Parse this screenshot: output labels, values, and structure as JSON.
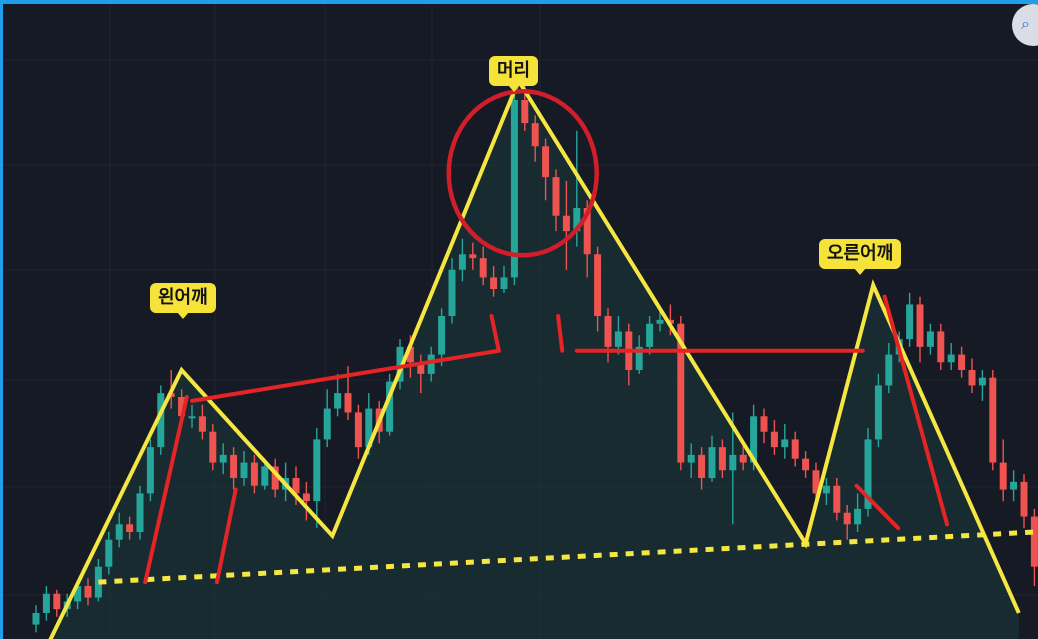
{
  "chart_data": {
    "type": "candlestick",
    "pattern": "head-and-shoulders",
    "annotations": [
      {
        "id": "left_shoulder",
        "text": "왼어깨"
      },
      {
        "id": "head",
        "text": "머리"
      },
      {
        "id": "right_shoulder",
        "text": "오른어깨"
      }
    ],
    "candles": [
      {
        "o": 90,
        "c": 93,
        "h": 95,
        "l": 88
      },
      {
        "o": 93,
        "c": 98,
        "h": 100,
        "l": 91
      },
      {
        "o": 98,
        "c": 94,
        "h": 99,
        "l": 92
      },
      {
        "o": 94,
        "c": 96,
        "h": 98,
        "l": 92
      },
      {
        "o": 96,
        "c": 100,
        "h": 101,
        "l": 94
      },
      {
        "o": 100,
        "c": 97,
        "h": 102,
        "l": 95
      },
      {
        "o": 97,
        "c": 105,
        "h": 107,
        "l": 96
      },
      {
        "o": 105,
        "c": 112,
        "h": 114,
        "l": 103
      },
      {
        "o": 112,
        "c": 116,
        "h": 119,
        "l": 110
      },
      {
        "o": 116,
        "c": 114,
        "h": 118,
        "l": 112
      },
      {
        "o": 114,
        "c": 124,
        "h": 126,
        "l": 112
      },
      {
        "o": 124,
        "c": 136,
        "h": 138,
        "l": 122
      },
      {
        "o": 136,
        "c": 150,
        "h": 152,
        "l": 134
      },
      {
        "o": 150,
        "c": 149,
        "h": 156,
        "l": 146
      },
      {
        "o": 149,
        "c": 144,
        "h": 151,
        "l": 142
      },
      {
        "o": 144,
        "c": 144,
        "h": 147,
        "l": 141
      },
      {
        "o": 144,
        "c": 140,
        "h": 147,
        "l": 138
      },
      {
        "o": 140,
        "c": 132,
        "h": 142,
        "l": 130
      },
      {
        "o": 132,
        "c": 134,
        "h": 137,
        "l": 129
      },
      {
        "o": 134,
        "c": 128,
        "h": 136,
        "l": 125
      },
      {
        "o": 128,
        "c": 132,
        "h": 135,
        "l": 126
      },
      {
        "o": 132,
        "c": 126,
        "h": 134,
        "l": 124
      },
      {
        "o": 126,
        "c": 131,
        "h": 133,
        "l": 125
      },
      {
        "o": 131,
        "c": 125,
        "h": 133,
        "l": 123
      },
      {
        "o": 125,
        "c": 128,
        "h": 132,
        "l": 122
      },
      {
        "o": 128,
        "c": 124,
        "h": 131,
        "l": 121
      },
      {
        "o": 124,
        "c": 122,
        "h": 127,
        "l": 117
      },
      {
        "o": 122,
        "c": 138,
        "h": 141,
        "l": 115
      },
      {
        "o": 138,
        "c": 146,
        "h": 151,
        "l": 136
      },
      {
        "o": 146,
        "c": 150,
        "h": 155,
        "l": 144
      },
      {
        "o": 150,
        "c": 145,
        "h": 157,
        "l": 143
      },
      {
        "o": 145,
        "c": 136,
        "h": 147,
        "l": 133
      },
      {
        "o": 136,
        "c": 146,
        "h": 150,
        "l": 134
      },
      {
        "o": 146,
        "c": 140,
        "h": 148,
        "l": 137
      },
      {
        "o": 140,
        "c": 153,
        "h": 155,
        "l": 139
      },
      {
        "o": 153,
        "c": 162,
        "h": 164,
        "l": 151
      },
      {
        "o": 162,
        "c": 158,
        "h": 165,
        "l": 154
      },
      {
        "o": 158,
        "c": 155,
        "h": 160,
        "l": 150
      },
      {
        "o": 155,
        "c": 160,
        "h": 162,
        "l": 153
      },
      {
        "o": 160,
        "c": 170,
        "h": 172,
        "l": 157
      },
      {
        "o": 170,
        "c": 182,
        "h": 185,
        "l": 168
      },
      {
        "o": 182,
        "c": 186,
        "h": 190,
        "l": 179
      },
      {
        "o": 186,
        "c": 185,
        "h": 189,
        "l": 182
      },
      {
        "o": 185,
        "c": 180,
        "h": 188,
        "l": 178
      },
      {
        "o": 180,
        "c": 177,
        "h": 183,
        "l": 175
      },
      {
        "o": 177,
        "c": 180,
        "h": 183,
        "l": 176
      },
      {
        "o": 180,
        "c": 226,
        "h": 228,
        "l": 178
      },
      {
        "o": 226,
        "c": 220,
        "h": 230,
        "l": 218
      },
      {
        "o": 220,
        "c": 214,
        "h": 222,
        "l": 210
      },
      {
        "o": 214,
        "c": 206,
        "h": 216,
        "l": 200
      },
      {
        "o": 206,
        "c": 196,
        "h": 208,
        "l": 192
      },
      {
        "o": 196,
        "c": 192,
        "h": 205,
        "l": 182
      },
      {
        "o": 192,
        "c": 198,
        "h": 218,
        "l": 188
      },
      {
        "o": 198,
        "c": 186,
        "h": 200,
        "l": 180
      },
      {
        "o": 186,
        "c": 170,
        "h": 188,
        "l": 166
      },
      {
        "o": 170,
        "c": 162,
        "h": 172,
        "l": 158
      },
      {
        "o": 162,
        "c": 166,
        "h": 170,
        "l": 160
      },
      {
        "o": 166,
        "c": 156,
        "h": 168,
        "l": 152
      },
      {
        "o": 156,
        "c": 162,
        "h": 165,
        "l": 155
      },
      {
        "o": 162,
        "c": 168,
        "h": 170,
        "l": 160
      },
      {
        "o": 168,
        "c": 169,
        "h": 172,
        "l": 166
      },
      {
        "o": 169,
        "c": 168,
        "h": 173,
        "l": 165
      },
      {
        "o": 168,
        "c": 132,
        "h": 170,
        "l": 130
      },
      {
        "o": 132,
        "c": 134,
        "h": 137,
        "l": 128
      },
      {
        "o": 134,
        "c": 128,
        "h": 136,
        "l": 125
      },
      {
        "o": 128,
        "c": 136,
        "h": 139,
        "l": 127
      },
      {
        "o": 136,
        "c": 130,
        "h": 138,
        "l": 128
      },
      {
        "o": 130,
        "c": 134,
        "h": 145,
        "l": 116
      },
      {
        "o": 134,
        "c": 132,
        "h": 137,
        "l": 130
      },
      {
        "o": 132,
        "c": 144,
        "h": 147,
        "l": 130
      },
      {
        "o": 144,
        "c": 140,
        "h": 146,
        "l": 137
      },
      {
        "o": 140,
        "c": 136,
        "h": 143,
        "l": 134
      },
      {
        "o": 136,
        "c": 138,
        "h": 142,
        "l": 133
      },
      {
        "o": 138,
        "c": 133,
        "h": 140,
        "l": 131
      },
      {
        "o": 133,
        "c": 130,
        "h": 135,
        "l": 128
      },
      {
        "o": 130,
        "c": 124,
        "h": 132,
        "l": 122
      },
      {
        "o": 124,
        "c": 126,
        "h": 128,
        "l": 121
      },
      {
        "o": 126,
        "c": 119,
        "h": 128,
        "l": 117
      },
      {
        "o": 119,
        "c": 116,
        "h": 121,
        "l": 112
      },
      {
        "o": 116,
        "c": 120,
        "h": 124,
        "l": 114
      },
      {
        "o": 120,
        "c": 138,
        "h": 141,
        "l": 118
      },
      {
        "o": 138,
        "c": 152,
        "h": 155,
        "l": 136
      },
      {
        "o": 152,
        "c": 160,
        "h": 163,
        "l": 150
      },
      {
        "o": 160,
        "c": 164,
        "h": 166,
        "l": 158
      },
      {
        "o": 164,
        "c": 173,
        "h": 176,
        "l": 162
      },
      {
        "o": 173,
        "c": 162,
        "h": 175,
        "l": 158
      },
      {
        "o": 162,
        "c": 166,
        "h": 168,
        "l": 160
      },
      {
        "o": 166,
        "c": 158,
        "h": 168,
        "l": 156
      },
      {
        "o": 158,
        "c": 160,
        "h": 163,
        "l": 156
      },
      {
        "o": 160,
        "c": 156,
        "h": 162,
        "l": 154
      },
      {
        "o": 156,
        "c": 152,
        "h": 159,
        "l": 150
      },
      {
        "o": 152,
        "c": 154,
        "h": 156,
        "l": 148
      },
      {
        "o": 154,
        "c": 132,
        "h": 156,
        "l": 130
      },
      {
        "o": 132,
        "c": 125,
        "h": 138,
        "l": 122
      },
      {
        "o": 125,
        "c": 127,
        "h": 130,
        "l": 122
      },
      {
        "o": 127,
        "c": 118,
        "h": 129,
        "l": 115
      },
      {
        "o": 118,
        "c": 105,
        "h": 120,
        "l": 100
      },
      {
        "o": 105,
        "c": 96,
        "h": 108,
        "l": 92
      },
      {
        "o": 96,
        "c": 102,
        "h": 104,
        "l": 94
      },
      {
        "o": 102,
        "c": 98,
        "h": 105,
        "l": 95
      },
      {
        "o": 98,
        "c": 102,
        "h": 106,
        "l": 96
      }
    ]
  }
}
